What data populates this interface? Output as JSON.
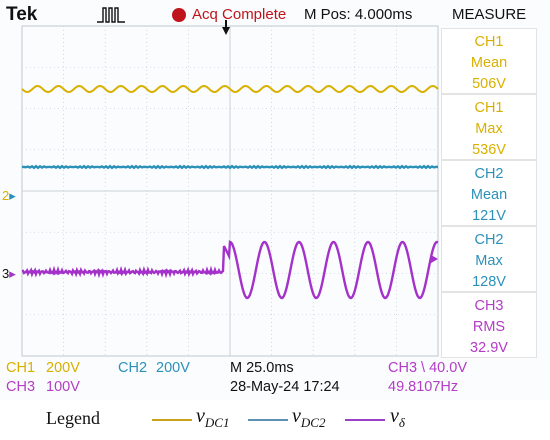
{
  "header": {
    "brand": "Tek",
    "status": "Acq Complete",
    "mpos": "M Pos: 4.000ms",
    "measure_title": "MEASURE"
  },
  "measurements": [
    {
      "ch": "CH1",
      "stat": "Mean",
      "value": "506V",
      "color": "#d9b000"
    },
    {
      "ch": "CH1",
      "stat": "Max",
      "value": "536V",
      "color": "#d9b000"
    },
    {
      "ch": "CH2",
      "stat": "Mean",
      "value": "121V",
      "color": "#2c91b9"
    },
    {
      "ch": "CH2",
      "stat": "Max",
      "value": "128V",
      "color": "#2c91b9"
    },
    {
      "ch": "CH3",
      "stat": "RMS",
      "value": "32.9V",
      "color": "#b43cc6"
    }
  ],
  "markers": {
    "ch2": "2",
    "ch3": "3"
  },
  "bottom": {
    "ch1_label": "CH1",
    "ch1_scale": "200V",
    "ch2_label": "CH2",
    "ch2_scale": "200V",
    "ch3_label": "CH3",
    "ch3_scale": "100V",
    "timebase": "M 25.0ms",
    "date": "28-May-24 17:24",
    "trigger": "CH3 \\ 40.0V",
    "frequency": "49.8107Hz"
  },
  "legend": {
    "label": "Legend",
    "items": [
      {
        "symbol": "v",
        "sub": "DC1",
        "color": "#c9a21a"
      },
      {
        "symbol": "v",
        "sub": "DC2",
        "color": "#5f8fb3"
      },
      {
        "symbol": "v",
        "sub": "δ",
        "color": "#9a3fc8"
      }
    ]
  },
  "colors": {
    "ch1": "#d9b000",
    "ch2": "#2c91b9",
    "ch3": "#a431c9",
    "grid": "#c9d2d8",
    "trigger_marker": "#111111"
  }
}
